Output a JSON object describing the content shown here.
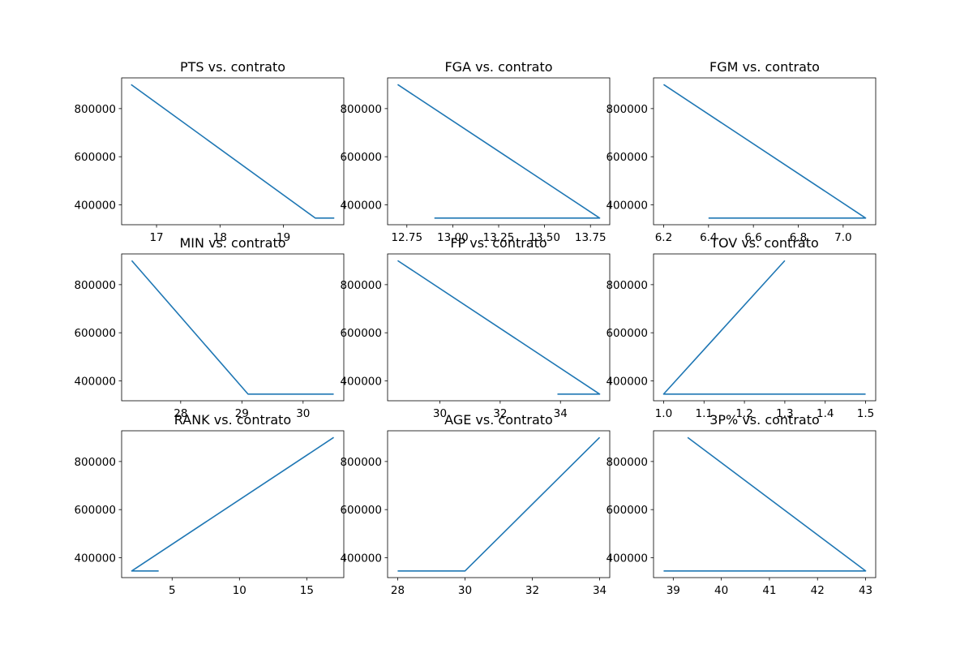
{
  "figure": {
    "background": "#ffffff",
    "line_color": "#1f77b4"
  },
  "chart_data": [
    {
      "type": "line",
      "title": "PTS vs. contrato",
      "x": [
        19.8,
        19.5,
        16.6
      ],
      "y": [
        345000,
        345000,
        900000
      ],
      "xlim": [
        16.45,
        19.95
      ],
      "ylim": [
        317250,
        927750
      ],
      "xticks": [
        17,
        18,
        19
      ],
      "yticks": [
        400000,
        600000,
        800000
      ]
    },
    {
      "type": "line",
      "title": "FGA vs. contrato",
      "x": [
        12.9,
        13.8,
        12.7
      ],
      "y": [
        345000,
        345000,
        900000
      ],
      "xlim": [
        12.645,
        13.855
      ],
      "ylim": [
        317250,
        927750
      ],
      "xticks": [
        12.75,
        13.0,
        13.25,
        13.5,
        13.75
      ],
      "yticks": [
        400000,
        600000,
        800000
      ]
    },
    {
      "type": "line",
      "title": "FGM vs. contrato",
      "x": [
        6.4,
        7.1,
        6.2
      ],
      "y": [
        345000,
        345000,
        900000
      ],
      "xlim": [
        6.155,
        7.145
      ],
      "ylim": [
        317250,
        927750
      ],
      "xticks": [
        6.2,
        6.4,
        6.6,
        6.8,
        7.0
      ],
      "yticks": [
        400000,
        600000,
        800000
      ]
    },
    {
      "type": "line",
      "title": "MIN vs. contrato",
      "x": [
        30.5,
        29.1,
        27.2
      ],
      "y": [
        345000,
        345000,
        900000
      ],
      "xlim": [
        27.035,
        30.665
      ],
      "ylim": [
        317250,
        927750
      ],
      "xticks": [
        28,
        29,
        30
      ],
      "yticks": [
        400000,
        600000,
        800000
      ]
    },
    {
      "type": "line",
      "title": "FP vs. contrato",
      "x": [
        33.9,
        35.3,
        28.6
      ],
      "y": [
        345000,
        345000,
        900000
      ],
      "xlim": [
        28.265,
        35.635
      ],
      "ylim": [
        317250,
        927750
      ],
      "xticks": [
        30,
        32,
        34
      ],
      "yticks": [
        400000,
        600000,
        800000
      ]
    },
    {
      "type": "line",
      "title": "TOV vs. contrato",
      "x": [
        1.5,
        1.0,
        1.3
      ],
      "y": [
        345000,
        345000,
        900000
      ],
      "xlim": [
        0.975,
        1.525
      ],
      "ylim": [
        317250,
        927750
      ],
      "xticks": [
        1.0,
        1.1,
        1.2,
        1.3,
        1.4,
        1.5
      ],
      "yticks": [
        400000,
        600000,
        800000
      ]
    },
    {
      "type": "line",
      "title": "RANK vs. contrato",
      "x": [
        4,
        2,
        17
      ],
      "y": [
        345000,
        345000,
        900000
      ],
      "xlim": [
        1.25,
        17.75
      ],
      "ylim": [
        317250,
        927750
      ],
      "xticks": [
        5,
        10,
        15
      ],
      "yticks": [
        400000,
        600000,
        800000
      ]
    },
    {
      "type": "line",
      "title": "AGE vs. contrato",
      "x": [
        28,
        30,
        34
      ],
      "y": [
        345000,
        345000,
        900000
      ],
      "xlim": [
        27.7,
        34.3
      ],
      "ylim": [
        317250,
        927750
      ],
      "xticks": [
        28,
        30,
        32,
        34
      ],
      "yticks": [
        400000,
        600000,
        800000
      ]
    },
    {
      "type": "line",
      "title": "3P% vs. contrato",
      "x": [
        38.8,
        43.0,
        39.3
      ],
      "y": [
        345000,
        345000,
        900000
      ],
      "xlim": [
        38.59,
        43.21
      ],
      "ylim": [
        317250,
        927750
      ],
      "xticks": [
        39,
        40,
        41,
        42,
        43
      ],
      "yticks": [
        400000,
        600000,
        800000
      ]
    }
  ]
}
